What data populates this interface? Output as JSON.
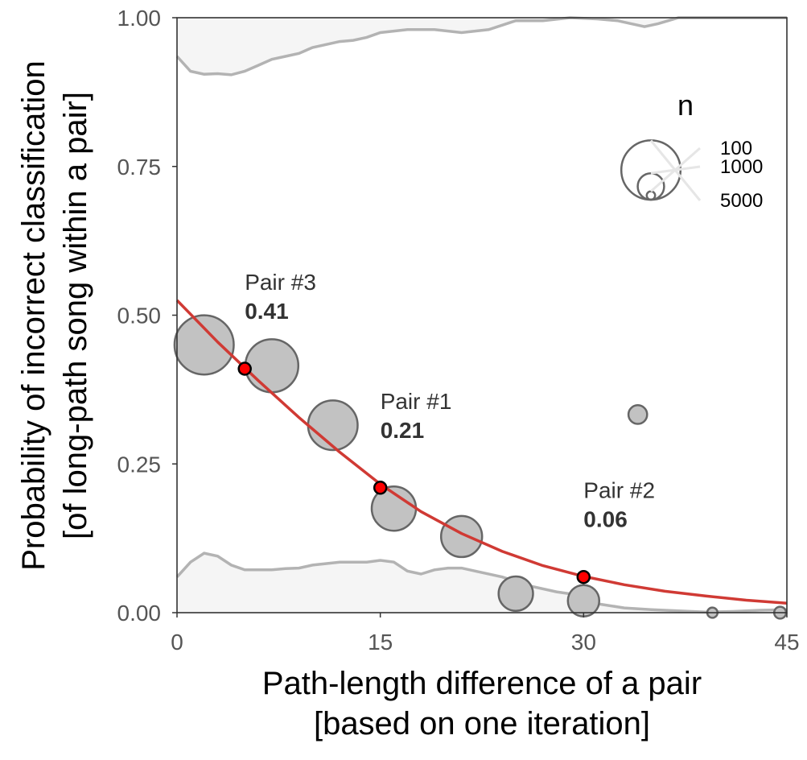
{
  "chart_data": {
    "type": "scatter",
    "title": "",
    "xlabel_line1": "Path-length difference of a pair",
    "xlabel_line2": "[based on one iteration]",
    "ylabel_line1": "Probability of incorrect classification",
    "ylabel_line2": "[of long-path song within a pair]",
    "xlim": [
      0,
      45
    ],
    "ylim": [
      0,
      1
    ],
    "x_ticks": [
      0,
      15,
      30,
      45
    ],
    "x_tick_labels": [
      "0",
      "15",
      "30",
      "45"
    ],
    "y_ticks": [
      0,
      0.25,
      0.5,
      0.75,
      1
    ],
    "y_tick_labels": [
      "0.00",
      "0.25",
      "0.50",
      "0.75",
      "1.00"
    ],
    "grid": false,
    "colors": {
      "bubble_fill": "#c2c2c2",
      "bubble_stroke": "#666666",
      "fit_line": "#d03a34",
      "highlight_point": "#ff0000",
      "density_fill": "#f5f5f5",
      "density_stroke": "#b3b3b3"
    },
    "bubbles": [
      {
        "x": 2,
        "y": 0.45,
        "n": 5000
      },
      {
        "x": 7,
        "y": 0.415,
        "n": 4000
      },
      {
        "x": 11.5,
        "y": 0.315,
        "n": 3500
      },
      {
        "x": 16,
        "y": 0.175,
        "n": 2800
      },
      {
        "x": 21,
        "y": 0.128,
        "n": 2400
      },
      {
        "x": 25,
        "y": 0.032,
        "n": 1700
      },
      {
        "x": 30,
        "y": 0.02,
        "n": 1400
      },
      {
        "x": 34,
        "y": 0.333,
        "n": 500
      },
      {
        "x": 39.5,
        "y": 0.0,
        "n": 150
      },
      {
        "x": 44.5,
        "y": 0.0,
        "n": 200
      }
    ],
    "fit_curve": {
      "x": [
        0,
        3,
        6,
        9,
        12,
        15,
        18,
        21,
        24,
        27,
        30,
        33,
        36,
        39,
        42,
        45
      ],
      "y": [
        0.525,
        0.455,
        0.39,
        0.328,
        0.27,
        0.216,
        0.17,
        0.133,
        0.103,
        0.079,
        0.061,
        0.047,
        0.036,
        0.028,
        0.021,
        0.016
      ]
    },
    "density_top": {
      "x": [
        0,
        1,
        2,
        3,
        4,
        5,
        6,
        7,
        8,
        9,
        10,
        11,
        12,
        13,
        14,
        15,
        17,
        19,
        21,
        23,
        25,
        27,
        29,
        31,
        32.5,
        33.5,
        34.5,
        35.5,
        37,
        45
      ],
      "y": [
        0.935,
        0.91,
        0.905,
        0.906,
        0.904,
        0.91,
        0.92,
        0.93,
        0.935,
        0.94,
        0.95,
        0.955,
        0.96,
        0.962,
        0.967,
        0.975,
        0.98,
        0.98,
        0.975,
        0.98,
        0.995,
        0.995,
        1.0,
        0.998,
        0.995,
        0.99,
        0.985,
        0.99,
        1.0,
        1.0
      ]
    },
    "density_bottom": {
      "x": [
        0,
        1,
        2,
        3,
        4,
        5,
        6,
        7,
        8,
        9,
        10,
        12,
        14,
        15,
        16,
        17,
        18,
        19,
        20,
        21,
        22,
        24,
        26,
        28,
        29.5,
        31,
        33,
        35,
        37,
        39,
        41,
        43,
        45
      ],
      "y": [
        0.06,
        0.085,
        0.1,
        0.095,
        0.08,
        0.072,
        0.072,
        0.072,
        0.074,
        0.075,
        0.08,
        0.085,
        0.085,
        0.088,
        0.085,
        0.07,
        0.065,
        0.072,
        0.075,
        0.075,
        0.07,
        0.06,
        0.045,
        0.035,
        0.03,
        0.015,
        0.008,
        0.005,
        0.003,
        0.001,
        0.002,
        0.004,
        0.005
      ]
    },
    "highlighted_pairs": [
      {
        "label": "Pair #3",
        "x": 5,
        "y": 0.41,
        "value_label": "0.41"
      },
      {
        "label": "Pair #1",
        "x": 15,
        "y": 0.21,
        "value_label": "0.21"
      },
      {
        "label": "Pair #2",
        "x": 30,
        "y": 0.06,
        "value_label": "0.06"
      }
    ],
    "legend": {
      "title": "n",
      "position": "top-right",
      "entries": [
        {
          "label": "100",
          "n": 100
        },
        {
          "label": "1000",
          "n": 1000
        },
        {
          "label": "5000",
          "n": 5000
        }
      ]
    }
  }
}
